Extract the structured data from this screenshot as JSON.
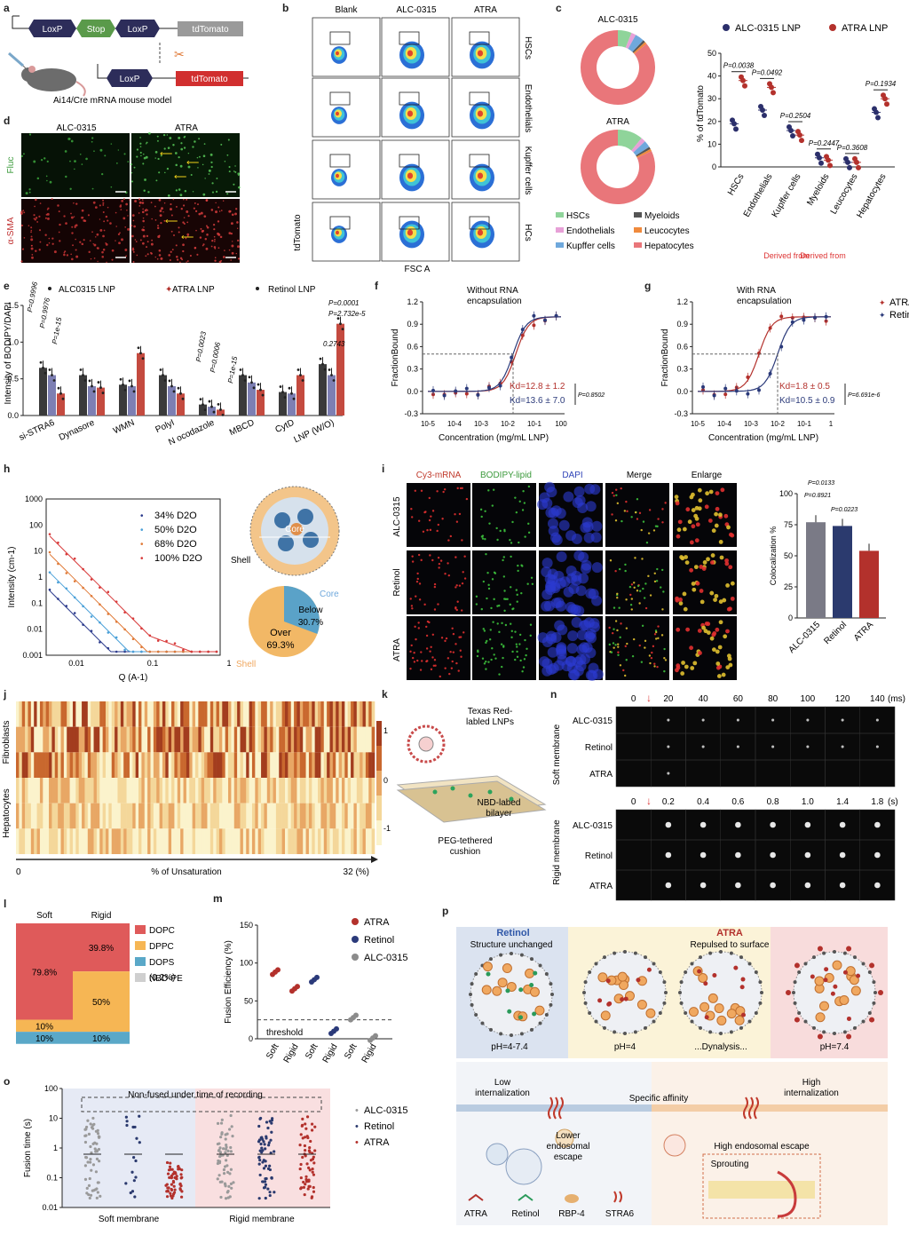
{
  "colors": {
    "alc": "#2b2f6b",
    "atra": "#b3312c",
    "retinol": "#2b3a7a",
    "grey": "#8c8c8c",
    "salmon": "#e9767a",
    "green": "#8fd49a",
    "blue": "#6fa8dc",
    "pink": "#e7a0d7",
    "orange": "#f08a3c",
    "darkgrey": "#555555"
  },
  "panel_letters": [
    "a",
    "b",
    "c",
    "d",
    "e",
    "f",
    "g",
    "h",
    "i",
    "j",
    "k",
    "l",
    "m",
    "n",
    "o",
    "p"
  ],
  "panel_a": {
    "loxp": "LoxP",
    "stop": "Stop",
    "tdtomato": "tdTomato",
    "caption": "Ai14/Cre mRNA mouse model"
  },
  "panel_b": {
    "columns": [
      "Blank",
      "ALC-0315",
      "ATRA"
    ],
    "rows": [
      "HSCs",
      "Endothelials",
      "Kupffer cells",
      "HCs"
    ],
    "ylabel": "tdTomato",
    "xlabel": "FSC A"
  },
  "panel_c": {
    "donut_titles": [
      "ALC-0315",
      "ATRA"
    ],
    "legend": [
      "HSCs",
      "Myeloids",
      "Endothelials",
      "Leucocytes",
      "Kupffer cells",
      "Hepatocytes"
    ],
    "dot_legend": [
      "ALC-0315 LNP",
      "ATRA LNP"
    ],
    "ylabel": "% of tdTomato",
    "ylim": [
      0,
      50
    ],
    "yticks": [
      "0",
      "10",
      "20",
      "30",
      "40",
      "50"
    ],
    "categories": [
      "HSCs",
      "Endothelials",
      "Kupffer cells",
      "Myeloids",
      "Leucocytes",
      "Hepatocytes"
    ],
    "pvalues": [
      "P=0.0038",
      "P=0.0492",
      "P=0.2504",
      "P=0.2447",
      "P=0.3608",
      "P=0.1934"
    ],
    "derived_from": [
      "Derived from",
      "Derived from"
    ]
  },
  "panel_d": {
    "columns": [
      "ALC-0315",
      "ATRA"
    ],
    "rows": [
      "Fluc",
      "α-SMA"
    ]
  },
  "panel_e": {
    "legend": [
      "ALC0315 LNP",
      "ATRA LNP",
      "Retinol LNP"
    ],
    "ylabel": "Intensity of BODIPY/DAPI",
    "yticks": [
      "0.0",
      "0.5",
      "1.0",
      "1.5"
    ],
    "categories": [
      "si-STRA6",
      "Dynasore",
      "WMN",
      "PolyI",
      "N ocodazole",
      "MBCD",
      "CytD",
      "LNP (W/O)"
    ],
    "pvalues": [
      "P=0.9996",
      "P=0.9976",
      "P=1e-15",
      "P=0.0023",
      "P=0.0006",
      "P=1e-15",
      "0.2743",
      "P=0.0001",
      "P=2.732e-5"
    ]
  },
  "panel_f": {
    "title": "Without RNA encapsulation",
    "ylabel": "FractionBound",
    "xlabel": "Concentration (mg/mL LNP)",
    "yticks": [
      "1.2",
      "0.9",
      "0.6",
      "0.3",
      "0.0",
      "-0.3"
    ],
    "xticks": [
      "10-5",
      "10-4",
      "10-3",
      "10-2",
      "10-1",
      "100"
    ],
    "kd_atra": "Kd=12.8 ± 1.2",
    "kd_ret": "Kd=13.6 ± 7.0",
    "p": "P=0.8502"
  },
  "panel_g": {
    "title": "With RNA encapsulation",
    "legend": [
      "ATRA",
      "Retinol"
    ],
    "ylabel": "FractionBound",
    "xlabel": "Concentration (mg/mL LNP)",
    "yticks": [
      "1.2",
      "0.9",
      "0.6",
      "0.3",
      "0.0",
      "-0.3"
    ],
    "xticks": [
      "10-5",
      "10-4",
      "10-3",
      "10-2",
      "10-1",
      "1"
    ],
    "kd_atra": "Kd=1.8 ± 0.5",
    "kd_ret": "Kd=10.5 ± 0.9",
    "p": "P=6.691e-6"
  },
  "panel_h": {
    "ylabel": "Intensity (cm-1)",
    "xlabel": "Q (A-1)",
    "legend": [
      "34% D2O",
      "50% D2O",
      "68% D2O",
      "100% D2O"
    ],
    "yticks": [
      "1000",
      "100",
      "10",
      "1",
      "0.1",
      "0.01",
      "0.001"
    ],
    "xticks": [
      "0.01",
      "0.1",
      "1"
    ],
    "core": "Core",
    "shell": "Shell",
    "pie_core": "Core",
    "pie_shell": "Shell",
    "below": "Below",
    "below_pct": "30.7%",
    "over": "Over",
    "over_pct": "69.3%"
  },
  "panel_i": {
    "columns": [
      "Cy3-mRNA",
      "BODIPY-lipid",
      "DAPI",
      "Merge",
      "Enlarge"
    ],
    "rows": [
      "ALC-0315",
      "Retinol",
      "ATRA"
    ],
    "ylabel": "Colocalization %",
    "yticks": [
      "100",
      "75",
      "50",
      "25",
      "0"
    ],
    "categories": [
      "ALC-0315",
      "Retinol",
      "ATRA"
    ],
    "pvalues": [
      "P=0.0133",
      "P=0.8921",
      "P=0.0223"
    ]
  },
  "panel_j": {
    "rows": [
      "Fibroblasts",
      "Hepatocytes"
    ],
    "xlabel": "% of Unsaturation",
    "x0": "0",
    "x1": "32 (%)",
    "scale": [
      "1",
      "0",
      "-1"
    ]
  },
  "panel_k": {
    "top": "Texas Red-labled LNPs",
    "mid": "NBD-labed bilayer",
    "bottom": "PEG-tethered cushion"
  },
  "panel_l": {
    "bars": [
      "Soft",
      "Rigid"
    ],
    "legend": [
      "DOPC",
      "DPPC",
      "DOPS",
      "NBD-PE (0.2%)"
    ],
    "soft": [
      "79.8%",
      "10%",
      "10%"
    ],
    "rigid": [
      "39.8%",
      "50%",
      "10%"
    ]
  },
  "panel_m": {
    "ylabel": "Fusion Efficiency (%)",
    "yticks": [
      "150",
      "100",
      "50",
      "0"
    ],
    "legend": [
      "ATRA",
      "Retinol",
      "ALC-0315"
    ],
    "threshold": "threshold",
    "xticks": [
      "Soft",
      "Rigid",
      "Soft",
      "Rigid",
      "Soft",
      "Rigid"
    ]
  },
  "panel_n": {
    "top_times": [
      "0",
      "20",
      "40",
      "60",
      "80",
      "100",
      "120",
      "140"
    ],
    "top_unit": "(ms)",
    "bottom_times": [
      "0",
      "0.2",
      "0.4",
      "0.6",
      "0.8",
      "1.0",
      "1.4",
      "1.8"
    ],
    "bottom_unit": "(s)",
    "rows": [
      "ALC-0315",
      "Retinol",
      "ATRA"
    ],
    "groups": [
      "Soft membrane",
      "Rigid membrane"
    ]
  },
  "panel_o": {
    "ylabel": "Fusion time (s)",
    "yticks": [
      "100",
      "10",
      "1",
      "0.1",
      "0.01"
    ],
    "note": "Non-fused under time of recording",
    "legend": [
      "ALC-0315",
      "Retinol",
      "ATRA"
    ],
    "groups": [
      "Soft membrane",
      "Rigid membrane"
    ]
  },
  "panel_p": {
    "retinol": "Retinol",
    "retinol_sub": "Structure unchanged",
    "atra": "ATRA",
    "atra_sub": "Repulsed to surface",
    "ph": [
      "pH=4-7.4",
      "pH=4",
      "...Dynalysis...",
      "pH=7.4"
    ],
    "low": "Low internalization",
    "high": "High internalization",
    "affinity": "Specific affinity",
    "lower_escape": "Lower endosomal escape",
    "high_escape": "High endosomal escape",
    "sprouting": "Sprouting",
    "bottom_labels": [
      "ATRA",
      "Retinol",
      "RBP-4",
      "STRA6"
    ]
  }
}
